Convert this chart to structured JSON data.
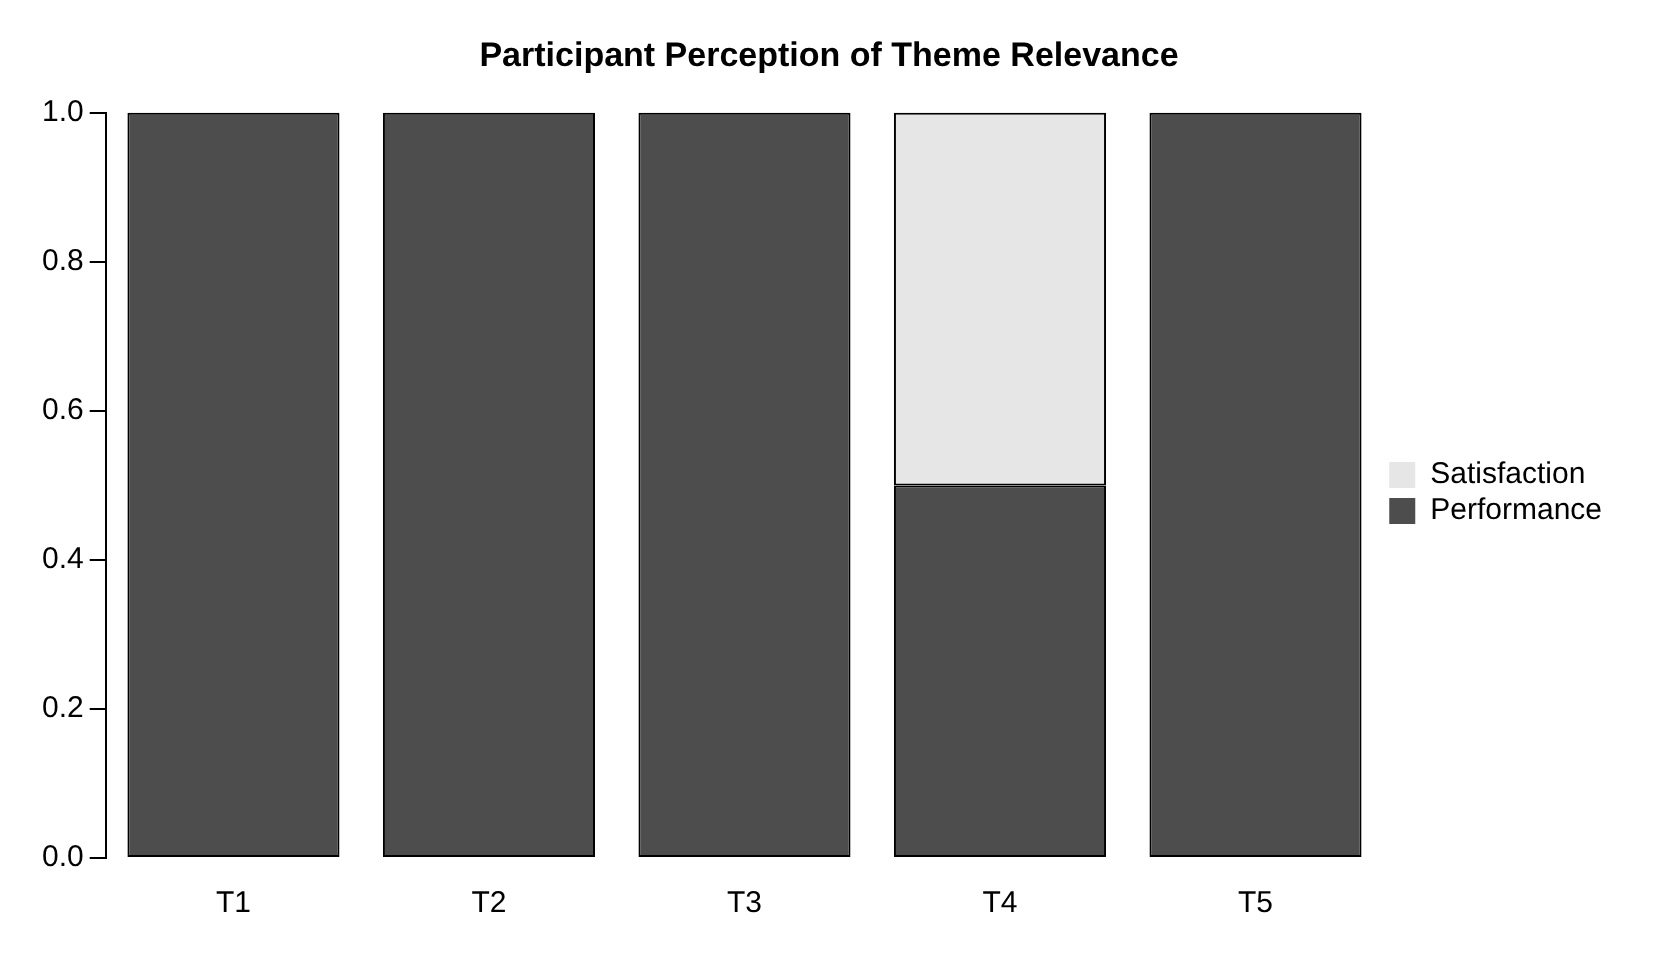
{
  "chart_data": {
    "type": "bar",
    "title": "Participant Perception of Theme Relevance",
    "categories": [
      "T1",
      "T2",
      "T3",
      "T4",
      "T5"
    ],
    "stacked": true,
    "series": [
      {
        "name": "Performance",
        "color": "#4d4d4d",
        "values": [
          1,
          1,
          1,
          0.5,
          1
        ]
      },
      {
        "name": "Satisfaction",
        "color": "#e6e6e6",
        "values": [
          0,
          0,
          0,
          0.5,
          0
        ]
      }
    ],
    "ylim": [
      0,
      1
    ],
    "yticks": [
      {
        "value": 0,
        "label": "0.0"
      },
      {
        "value": 0.2,
        "label": "0.2"
      },
      {
        "value": 0.4,
        "label": "0.4"
      },
      {
        "value": 0.6,
        "label": "0.6"
      },
      {
        "value": 0.8,
        "label": "0.8"
      },
      {
        "value": 1,
        "label": "1.0"
      }
    ],
    "grid": false,
    "legend": "right"
  }
}
